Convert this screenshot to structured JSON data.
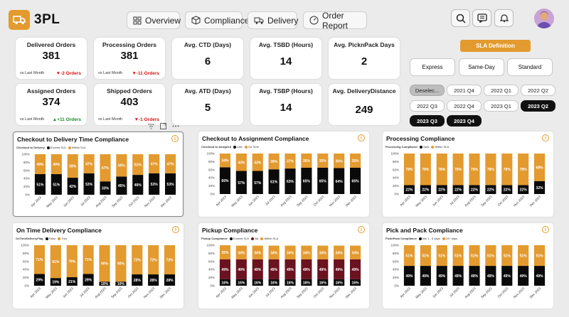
{
  "app": {
    "title": "3PL"
  },
  "nav": [
    {
      "label": "Overview",
      "icon": "grid-icon"
    },
    {
      "label": "Compliance",
      "icon": "box-icon"
    },
    {
      "label": "Delivery",
      "icon": "truck-icon"
    },
    {
      "label": "Order Report",
      "icon": "gauge-icon"
    }
  ],
  "kpis": {
    "delivered": {
      "title": "Delivered Orders",
      "value": "381",
      "vs": "vs Last Month",
      "change": "▼-2 Orders"
    },
    "processing": {
      "title": "Processing Orders",
      "value": "381",
      "vs": "vs Last Month",
      "change": "▼-11 Orders"
    },
    "assigned": {
      "title": "Assigned Orders",
      "value": "374",
      "vs": "vs Last Month",
      "change": "▲+11 Orders"
    },
    "shipped": {
      "title": "Shipped Orders",
      "value": "403",
      "vs": "vs Last Month",
      "change": "▼-1 Orders"
    },
    "ctd": {
      "title": "Avg. CTD (Days)",
      "value": "6"
    },
    "tsbd": {
      "title": "Avg. TSBD (Hours)",
      "value": "14"
    },
    "picknpack": {
      "title": "Avg. PicknPack Days",
      "value": "2"
    },
    "atd": {
      "title": "Avg. ATD (Days)",
      "value": "5"
    },
    "tsbp": {
      "title": "Avg. TSBP (Hours)",
      "value": "14"
    },
    "delivdist": {
      "title": "Avg. DeliveryDistance",
      "value": "249"
    }
  },
  "sla": {
    "title": "SLA Definition",
    "options": [
      "Express",
      "Same-Day",
      "Standard"
    ]
  },
  "quarters": [
    "Deselec...",
    "2021 Q4",
    "2022 Q1",
    "2022 Q2",
    "2022 Q3",
    "2022 Q4",
    "2023 Q1",
    "2023 Q2",
    "2023 Q3",
    "2023 Q4"
  ],
  "colors": {
    "accent": "#e39a2e",
    "black": "#0a0a0a",
    "maroon": "#6b1220",
    "na": "#9b1c2c"
  },
  "chart_data": [
    {
      "type": "bar",
      "stacked": true,
      "title": "Checkout to Delivery Time Compliance",
      "legend_title": "Checkout to Delivery",
      "categories": [
        "Apr 2023",
        "May 2023",
        "Jun 2023",
        "Jul 2023",
        "Aug 2023",
        "Sep 2023",
        "Oct 2023",
        "Nov 2023",
        "Dec 2023"
      ],
      "series": [
        {
          "name": "Exceed SLA",
          "color": "#0a0a0a",
          "values": [
            51,
            51,
            42,
            53,
            33,
            45,
            49,
            53,
            53
          ]
        },
        {
          "name": "Within SLA",
          "color": "#e39a2e",
          "values": [
            49,
            49,
            58,
            47,
            67,
            55,
            51,
            47,
            47
          ]
        }
      ]
    },
    {
      "type": "bar",
      "stacked": true,
      "title": "Checkout to Assignment Compliance",
      "legend_title": "Checkout to Assigned",
      "categories": [
        "Apr 2023",
        "May 2023",
        "Jun 2023",
        "Jul 2023",
        "Aug 2023",
        "Sep 2023",
        "Oct 2023",
        "Nov 2023",
        "Dec 2023"
      ],
      "series": [
        {
          "name": "Late",
          "color": "#0a0a0a",
          "values": [
            66,
            57,
            57,
            61,
            63,
            65,
            65,
            64,
            65
          ]
        },
        {
          "name": "On Time",
          "color": "#e39a2e",
          "values": [
            34,
            43,
            43,
            39,
            37,
            35,
            35,
            36,
            35
          ]
        }
      ]
    },
    {
      "type": "bar",
      "stacked": true,
      "title": "Processing Compliance",
      "legend_title": "Processing Compliance",
      "categories": [
        "Apr 2023",
        "May 2023",
        "Jun 2023",
        "Jul 2023",
        "Aug 2023",
        "Sep 2023",
        "Oct 2023",
        "Nov 2023",
        "Dec 2023"
      ],
      "series": [
        {
          "name": "NaN",
          "color": "#0a0a0a",
          "values": [
            22,
            22,
            22,
            22,
            22,
            22,
            22,
            22,
            32
          ]
        },
        {
          "name": "Within SLA",
          "color": "#e39a2e",
          "values": [
            78,
            78,
            78,
            78,
            78,
            78,
            78,
            78,
            68
          ]
        }
      ]
    },
    {
      "type": "bar",
      "stacked": true,
      "title": "On Time Delivery Compliance",
      "legend_title": "OnTimeDeliveryFlag",
      "categories": [
        "Apr 2023",
        "May 2023",
        "Jun 2023",
        "Jul 2023",
        "Aug 2023",
        "Sep 2023",
        "Oct 2023",
        "Nov 2023",
        "Dec 2023"
      ],
      "series": [
        {
          "name": "False",
          "color": "#0a0a0a",
          "values": [
            29,
            19,
            21,
            29,
            10,
            10,
            28,
            28,
            28
          ]
        },
        {
          "name": "True",
          "color": "#e39a2e",
          "values": [
            71,
            81,
            79,
            71,
            90,
            90,
            72,
            72,
            72
          ]
        }
      ]
    },
    {
      "type": "bar",
      "stacked": true,
      "title": "Pickup Compliance",
      "legend_title": "Pickup Compliance",
      "categories": [
        "Apr 2023",
        "May 2023",
        "Jun 2023",
        "Jul 2023",
        "Aug 2023",
        "Sep 2023",
        "Oct 2023",
        "Nov 2023",
        "Dec 2023"
      ],
      "series": [
        {
          "name": "Exceed SLA",
          "color": "#0a0a0a",
          "values": [
            16,
            16,
            16,
            16,
            16,
            16,
            16,
            16,
            16
          ]
        },
        {
          "name": "NA",
          "color": "#6b1220",
          "values": [
            49,
            49,
            49,
            49,
            49,
            49,
            49,
            49,
            49
          ]
        },
        {
          "name": "Within SLA",
          "color": "#e39a2e",
          "values": [
            35,
            34,
            34,
            34,
            34,
            34,
            34,
            34,
            34
          ]
        }
      ]
    },
    {
      "type": "bar",
      "stacked": true,
      "title": "Pick and Pack Compliance",
      "legend_title": "PicknPack Compliance",
      "categories": [
        "Apr 2023",
        "May 2023",
        "Jun 2023",
        "Jul 2023",
        "Aug 2023",
        "Sep 2023",
        "Oct 2023",
        "Nov 2023",
        "Dec 2023"
      ],
      "series": [
        {
          "name": "btw 1 - 6 days",
          "color": "#0a0a0a",
          "values": [
            49,
            49,
            49,
            49,
            49,
            49,
            49,
            49,
            49
          ]
        },
        {
          "name": "24+ days",
          "color": "#e39a2e",
          "values": [
            51,
            51,
            51,
            51,
            51,
            51,
            51,
            51,
            51
          ]
        }
      ]
    }
  ]
}
